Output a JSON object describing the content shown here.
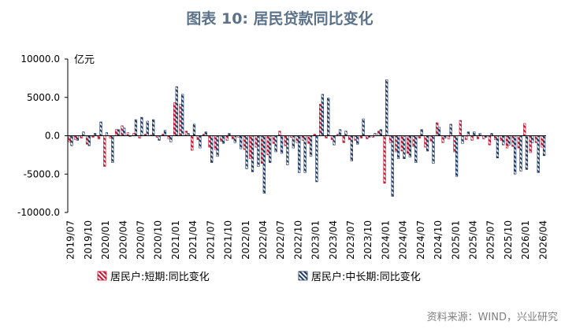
{
  "chart_data": {
    "type": "bar",
    "title": "图表 10: 居民贷款同比变化",
    "unit_label": "亿元",
    "source": "资料来源：WIND，兴业研究",
    "ylim": [
      -10000,
      10000
    ],
    "yticks": [
      10000,
      5000,
      0,
      -5000,
      -10000
    ],
    "ytick_labels": [
      "10000.0",
      "5000.0",
      "0.0",
      "-5000.0",
      "-10000.0"
    ],
    "x_tick_labels": [
      "2019/07",
      "2019/10",
      "2020/01",
      "2020/04",
      "2020/07",
      "2020/10",
      "2021/01",
      "2021/04",
      "2021/07",
      "2021/10",
      "2022/01",
      "2022/04",
      "2022/07",
      "2022/10",
      "2023/01",
      "2023/04",
      "2023/07",
      "2023/10",
      "2024/01",
      "2024/04",
      "2024/07",
      "2024/10",
      "2025/01",
      "2025/04",
      "2025/07",
      "2025/10",
      "2026/01",
      "2026/04"
    ],
    "legend_position": "bottom",
    "colors": {
      "short": "#c8102e",
      "long": "#1f3864",
      "title": "#5b7289",
      "source": "#808080"
    },
    "categories": [
      "2019/07",
      "2019/08",
      "2019/09",
      "2019/10",
      "2019/11",
      "2019/12",
      "2020/01",
      "2020/02",
      "2020/03",
      "2020/04",
      "2020/05",
      "2020/06",
      "2020/07",
      "2020/08",
      "2020/09",
      "2020/10",
      "2020/11",
      "2020/12",
      "2021/01",
      "2021/02",
      "2021/03",
      "2021/04",
      "2021/05",
      "2021/06",
      "2021/07",
      "2021/08",
      "2021/09",
      "2021/10",
      "2021/11",
      "2021/12",
      "2022/01",
      "2022/02",
      "2022/03",
      "2022/04",
      "2022/05",
      "2022/06",
      "2022/07",
      "2022/08",
      "2022/09",
      "2022/10",
      "2022/11",
      "2022/12",
      "2023/01",
      "2023/02",
      "2023/03",
      "2023/04",
      "2023/05",
      "2023/06",
      "2023/07",
      "2023/08",
      "2023/09",
      "2023/10",
      "2023/11",
      "2023/12",
      "2024/01",
      "2024/02",
      "2024/03",
      "2024/04",
      "2024/05",
      "2024/06",
      "2024/07",
      "2024/08",
      "2024/09",
      "2024/10",
      "2024/11",
      "2024/12",
      "2025/01",
      "2025/02",
      "2025/03",
      "2025/04",
      "2025/05",
      "2025/06",
      "2025/07",
      "2025/08",
      "2025/09",
      "2025/10",
      "2025/11",
      "2025/12",
      "2026/01",
      "2026/02",
      "2026/03",
      "2026/04"
    ],
    "series": [
      {
        "name": "居民户:短期:同比变化",
        "key": "short",
        "values": [
          -800,
          -500,
          -300,
          -1100,
          -200,
          -400,
          -4000,
          -300,
          800,
          1300,
          400,
          300,
          -300,
          200,
          100,
          -200,
          200,
          -400,
          4300,
          4100,
          600,
          -1900,
          -500,
          200,
          -1500,
          -1800,
          -700,
          -600,
          -400,
          -200,
          -1800,
          -3000,
          -1500,
          -3600,
          -2500,
          -1000,
          600,
          -1300,
          -200,
          -900,
          -600,
          -1000,
          200,
          4100,
          -300,
          -500,
          200,
          -900,
          -500,
          -600,
          -300,
          -400,
          -200,
          600,
          -6200,
          -900,
          -2100,
          -2000,
          -2300,
          -1400,
          -300,
          -1500,
          -700,
          1700,
          -900,
          -400,
          -2100,
          2000,
          -500,
          -600,
          -400,
          -400,
          -1200,
          -500,
          -600,
          -1600,
          -1400,
          -1600,
          1600,
          -2200,
          -900,
          -1500
        ]
      },
      {
        "name": "居民户:中长期:同比变化",
        "key": "long",
        "values": [
          -1300,
          -600,
          500,
          -1300,
          300,
          1800,
          400,
          -3500,
          800,
          1000,
          -100,
          2100,
          2400,
          1900,
          2100,
          -600,
          700,
          -800,
          6400,
          5400,
          300,
          1500,
          -1600,
          500,
          -3500,
          -2700,
          -1000,
          300,
          -900,
          -1700,
          -4300,
          -4700,
          -4000,
          -7500,
          -3500,
          -2100,
          -2300,
          -3800,
          -1600,
          -4800,
          -4800,
          -2700,
          -6000,
          5400,
          4900,
          -1200,
          800,
          600,
          -3300,
          -1100,
          2200,
          -200,
          300,
          800,
          7300,
          -7900,
          -3000,
          -3000,
          -2800,
          -3500,
          800,
          -2000,
          -3600,
          1100,
          -300,
          1500,
          -5300,
          -1000,
          500,
          500,
          300,
          -200,
          300,
          -2900,
          -1200,
          -1200,
          -5000,
          -4600,
          -4400,
          -900,
          -4800,
          -2600
        ]
      }
    ]
  }
}
